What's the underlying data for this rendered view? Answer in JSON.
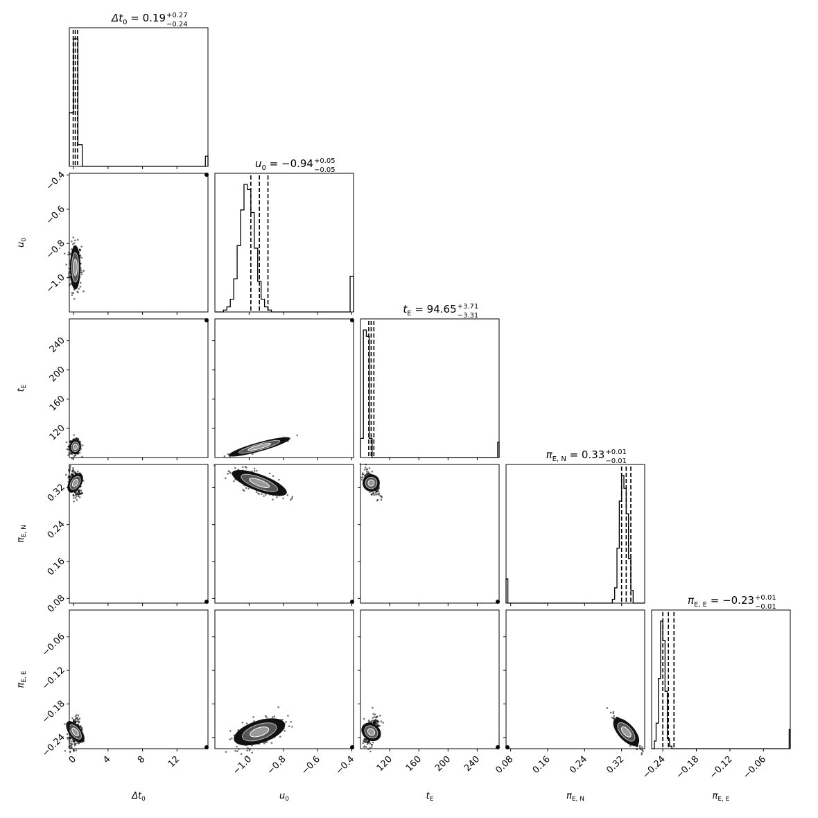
{
  "chart_data": {
    "type": "corner",
    "parameters": [
      {
        "key": "dt0",
        "label": "Δt₀",
        "median": 0.19,
        "minus": 0.24,
        "plus": 0.27,
        "range": [
          -0.5,
          15.6
        ],
        "ticks": [
          0,
          4,
          8,
          12
        ],
        "tick_labels": [
          "0",
          "4",
          "8",
          "12"
        ]
      },
      {
        "key": "u0",
        "label": "u₀",
        "median": -0.94,
        "minus": 0.05,
        "plus": 0.05,
        "range": [
          -1.2,
          -0.39
        ],
        "ticks": [
          -1.0,
          -0.8,
          -0.6,
          -0.4
        ],
        "tick_labels": [
          "−1.0",
          "−0.8",
          "−0.6",
          "−0.4"
        ]
      },
      {
        "key": "tE",
        "label": "t_E",
        "median": 94.65,
        "minus": 3.31,
        "plus": 3.71,
        "range": [
          80,
          270
        ],
        "ticks": [
          120,
          160,
          200,
          240
        ],
        "tick_labels": [
          "120",
          "160",
          "200",
          "240"
        ]
      },
      {
        "key": "piEN",
        "label": "π_E,N",
        "median": 0.33,
        "minus": 0.01,
        "plus": 0.01,
        "range": [
          0.07,
          0.37
        ],
        "ticks": [
          0.08,
          0.16,
          0.24,
          0.32
        ],
        "tick_labels": [
          "0.08",
          "0.16",
          "0.24",
          "0.32"
        ]
      },
      {
        "key": "piEE",
        "label": "π_E,E",
        "median": -0.23,
        "minus": 0.01,
        "plus": 0.01,
        "range": [
          -0.26,
          -0.012
        ],
        "ticks": [
          -0.24,
          -0.18,
          -0.12,
          -0.06
        ],
        "tick_labels": [
          "−0.24",
          "−0.18",
          "−0.12",
          "−0.06"
        ]
      }
    ],
    "titles": [
      {
        "prefix": "Δt",
        "sub": "0",
        "value": " = 0.19",
        "plus": "+0.27",
        "minus": "−0.24"
      },
      {
        "prefix": "u",
        "sub": "0",
        "value": " = −0.94",
        "plus": "+0.05",
        "minus": "−0.05"
      },
      {
        "prefix": "t",
        "sub": "E",
        "value": " = 94.65",
        "plus": "+3.71",
        "minus": "−3.31"
      },
      {
        "prefix": "π",
        "sub": "E, N",
        "value": " = 0.33",
        "plus": "+0.01",
        "minus": "−0.01"
      },
      {
        "prefix": "π",
        "sub": "E, E",
        "value": " = −0.23",
        "plus": "+0.01",
        "minus": "−0.01"
      }
    ],
    "axis_labels": [
      {
        "main": "Δt",
        "sub": "0"
      },
      {
        "main": "u",
        "sub": "0"
      },
      {
        "main": "t",
        "sub": "E"
      },
      {
        "main": "π",
        "sub": "E, N"
      },
      {
        "main": "π",
        "sub": "E, E"
      }
    ],
    "histograms": [
      {
        "bins": [
          [
            -0.5,
            0.0,
            0.42
          ],
          [
            0.0,
            0.5,
            1.0
          ],
          [
            0.5,
            1.0,
            0.17
          ],
          [
            1.0,
            15.3,
            0.0
          ],
          [
            15.3,
            15.6,
            0.08
          ]
        ],
        "quantiles": [
          -0.05,
          0.19,
          0.46
        ]
      },
      {
        "bins": [
          [
            -1.2,
            -1.15,
            0.0
          ],
          [
            -1.15,
            -1.13,
            0.015
          ],
          [
            -1.13,
            -1.11,
            0.04
          ],
          [
            -1.11,
            -1.09,
            0.1
          ],
          [
            -1.09,
            -1.07,
            0.26
          ],
          [
            -1.07,
            -1.05,
            0.52
          ],
          [
            -1.05,
            -1.03,
            0.8
          ],
          [
            -1.03,
            -1.01,
            1.0
          ],
          [
            -1.01,
            -0.99,
            0.96
          ],
          [
            -0.99,
            -0.97,
            0.78
          ],
          [
            -0.97,
            -0.95,
            0.5
          ],
          [
            -0.95,
            -0.93,
            0.24
          ],
          [
            -0.93,
            -0.91,
            0.1
          ],
          [
            -0.91,
            -0.89,
            0.04
          ],
          [
            -0.89,
            -0.87,
            0.015
          ],
          [
            -0.87,
            -0.41,
            0.0
          ],
          [
            -0.41,
            -0.39,
            0.28
          ]
        ],
        "quantiles": [
          -0.99,
          -0.94,
          -0.89
        ]
      },
      {
        "bins": [
          [
            80,
            84,
            0.15
          ],
          [
            84,
            88,
            1.0
          ],
          [
            88,
            92,
            0.95
          ],
          [
            92,
            96,
            0.15
          ],
          [
            96,
            268,
            0.0
          ],
          [
            268,
            270,
            0.12
          ]
        ],
        "quantiles": [
          91.34,
          94.65,
          98.36
        ]
      },
      {
        "bins": [
          [
            0.07,
            0.074,
            0.19
          ],
          [
            0.074,
            0.3,
            0.0
          ],
          [
            0.3,
            0.305,
            0.03
          ],
          [
            0.305,
            0.31,
            0.12
          ],
          [
            0.31,
            0.315,
            0.43
          ],
          [
            0.315,
            0.32,
            0.8
          ],
          [
            0.32,
            0.325,
            1.0
          ],
          [
            0.325,
            0.33,
            0.9
          ],
          [
            0.33,
            0.335,
            0.7
          ],
          [
            0.335,
            0.34,
            0.35
          ],
          [
            0.34,
            0.345,
            0.1
          ],
          [
            0.345,
            0.37,
            0.0
          ]
        ],
        "quantiles": [
          0.32,
          0.33,
          0.34
        ]
      },
      {
        "bins": [
          [
            -0.26,
            -0.255,
            0.0
          ],
          [
            -0.255,
            -0.252,
            0.06
          ],
          [
            -0.252,
            -0.248,
            0.2
          ],
          [
            -0.248,
            -0.244,
            0.55
          ],
          [
            -0.244,
            -0.24,
            1.0
          ],
          [
            -0.24,
            -0.236,
            0.85
          ],
          [
            -0.236,
            -0.232,
            0.45
          ],
          [
            -0.232,
            -0.228,
            0.08
          ],
          [
            -0.228,
            -0.224,
            0.02
          ],
          [
            -0.224,
            -0.014,
            0.0
          ],
          [
            -0.014,
            -0.012,
            0.15
          ]
        ],
        "quantiles": [
          -0.24,
          -0.23,
          -0.22
        ]
      }
    ]
  }
}
